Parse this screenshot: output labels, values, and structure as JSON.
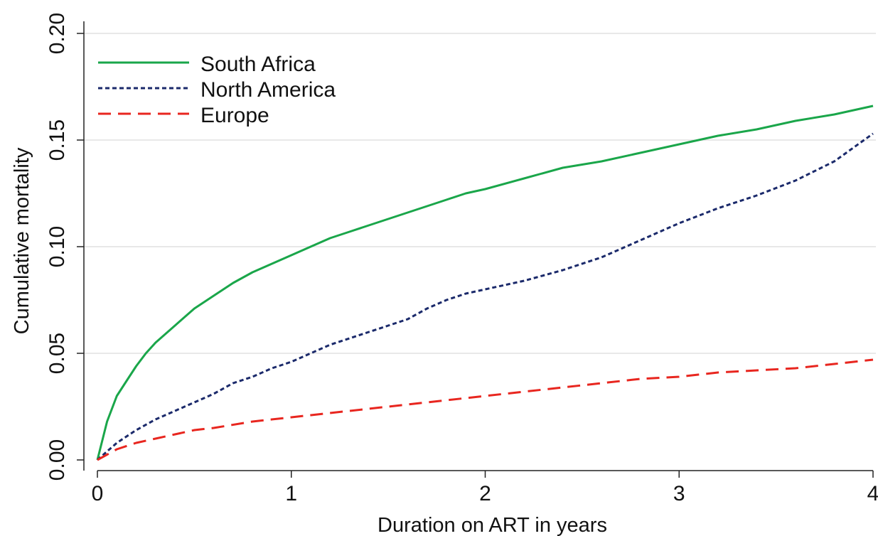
{
  "chart_data": {
    "type": "line",
    "title": "",
    "xlabel": "Duration on ART in years",
    "ylabel": "Cumulative mortality",
    "xlim": [
      0,
      4
    ],
    "ylim": [
      0,
      0.2
    ],
    "x_ticks": [
      0,
      1,
      2,
      3,
      4
    ],
    "x_tick_labels": [
      "0",
      "1",
      "2",
      "3",
      "4"
    ],
    "y_ticks": [
      0,
      0.05,
      0.1,
      0.15,
      0.2
    ],
    "y_tick_labels": [
      "0.00",
      "0.05",
      "0.10",
      "0.15",
      "0.20"
    ],
    "grid": "horizontal",
    "legend_position": "top-left",
    "series": [
      {
        "name": "South Africa",
        "color": "#1aa64a",
        "style": "solid",
        "x": [
          0,
          0.05,
          0.1,
          0.15,
          0.2,
          0.25,
          0.3,
          0.4,
          0.5,
          0.6,
          0.7,
          0.8,
          0.9,
          1.0,
          1.1,
          1.2,
          1.3,
          1.4,
          1.5,
          1.6,
          1.7,
          1.8,
          1.9,
          2.0,
          2.2,
          2.4,
          2.6,
          2.8,
          3.0,
          3.2,
          3.4,
          3.6,
          3.8,
          4.0
        ],
        "y": [
          0,
          0.018,
          0.03,
          0.037,
          0.044,
          0.05,
          0.055,
          0.063,
          0.071,
          0.077,
          0.083,
          0.088,
          0.092,
          0.096,
          0.1,
          0.104,
          0.107,
          0.11,
          0.113,
          0.116,
          0.119,
          0.122,
          0.125,
          0.127,
          0.132,
          0.137,
          0.14,
          0.144,
          0.148,
          0.152,
          0.155,
          0.159,
          0.162,
          0.166
        ]
      },
      {
        "name": "North America",
        "color": "#1b2a6b",
        "style": "dotted",
        "x": [
          0,
          0.1,
          0.2,
          0.3,
          0.4,
          0.5,
          0.6,
          0.7,
          0.8,
          0.9,
          1.0,
          1.1,
          1.2,
          1.3,
          1.4,
          1.5,
          1.6,
          1.7,
          1.8,
          1.9,
          2.0,
          2.2,
          2.4,
          2.6,
          2.8,
          3.0,
          3.2,
          3.4,
          3.6,
          3.8,
          4.0
        ],
        "y": [
          0,
          0.008,
          0.014,
          0.019,
          0.023,
          0.027,
          0.031,
          0.036,
          0.039,
          0.043,
          0.046,
          0.05,
          0.054,
          0.057,
          0.06,
          0.063,
          0.066,
          0.071,
          0.075,
          0.078,
          0.08,
          0.084,
          0.089,
          0.095,
          0.103,
          0.111,
          0.118,
          0.124,
          0.131,
          0.14,
          0.153
        ]
      },
      {
        "name": "Europe",
        "color": "#e8261f",
        "style": "dashed",
        "x": [
          0,
          0.1,
          0.2,
          0.3,
          0.4,
          0.5,
          0.6,
          0.8,
          1.0,
          1.2,
          1.4,
          1.6,
          1.8,
          2.0,
          2.2,
          2.4,
          2.6,
          2.8,
          3.0,
          3.2,
          3.4,
          3.6,
          3.8,
          4.0
        ],
        "y": [
          0,
          0.005,
          0.008,
          0.01,
          0.012,
          0.014,
          0.015,
          0.018,
          0.02,
          0.022,
          0.024,
          0.026,
          0.028,
          0.03,
          0.032,
          0.034,
          0.036,
          0.038,
          0.039,
          0.041,
          0.042,
          0.043,
          0.045,
          0.047
        ]
      }
    ]
  }
}
